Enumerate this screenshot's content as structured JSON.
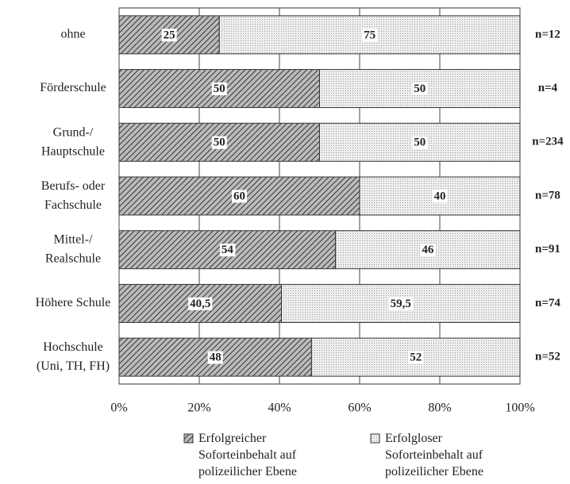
{
  "chart_data": {
    "type": "stacked_barh",
    "categories": [
      "ohne",
      "Förderschule",
      "Grund-/\nHauptschule",
      "Berufs- oder\nFachschule",
      "Mittel-/\nRealschule",
      "Höhere Schule",
      "Hochschule\n(Uni, TH, FH)"
    ],
    "series": [
      {
        "name": "Erfolgreicher\nSoforteinbehalt auf\npolizeilicher Ebene",
        "values": [
          25,
          50,
          50,
          60,
          54,
          40.5,
          48
        ],
        "value_labels": [
          "25",
          "50",
          "50",
          "60",
          "54",
          "40,5",
          "48"
        ]
      },
      {
        "name": "Erfolgloser\nSoforteinbehalt auf\npolizeilicher Ebene",
        "values": [
          75,
          50,
          50,
          40,
          46,
          59.5,
          52
        ],
        "value_labels": [
          "75",
          "50",
          "50",
          "40",
          "46",
          "59,5",
          "52"
        ]
      }
    ],
    "annotations": [
      "n=12",
      "n=4",
      "n=234",
      "n=78",
      "n=91",
      "n=74",
      "n=52"
    ],
    "xlim": [
      0,
      100
    ],
    "xticks": [
      {
        "value": 0,
        "label": "0%"
      },
      {
        "value": 20,
        "label": "20%"
      },
      {
        "value": 40,
        "label": "40%"
      },
      {
        "value": 60,
        "label": "60%"
      },
      {
        "value": 80,
        "label": "80%"
      },
      {
        "value": 100,
        "label": "100%"
      }
    ],
    "grid": true
  }
}
